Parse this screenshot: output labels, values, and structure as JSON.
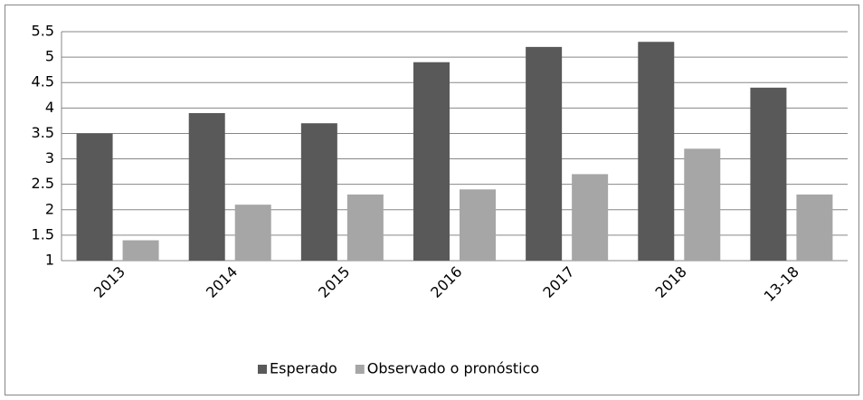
{
  "chart_data": {
    "type": "bar",
    "categories": [
      "2013",
      "2014",
      "2015",
      "2016",
      "2017",
      "2018",
      "13-18"
    ],
    "series": [
      {
        "name": "Esperado",
        "color": "#595959",
        "values": [
          3.5,
          3.9,
          3.7,
          4.9,
          5.2,
          5.3,
          4.4
        ]
      },
      {
        "name": "Observado o pronóstico",
        "color": "#a6a6a6",
        "values": [
          1.4,
          2.1,
          2.3,
          2.4,
          2.7,
          3.2,
          2.3
        ]
      }
    ],
    "ylim": [
      1,
      5.5
    ],
    "yticks": [
      1,
      1.5,
      2,
      2.5,
      3,
      3.5,
      4,
      4.5,
      5,
      5.5
    ],
    "grid": true,
    "legend": "bottom"
  }
}
